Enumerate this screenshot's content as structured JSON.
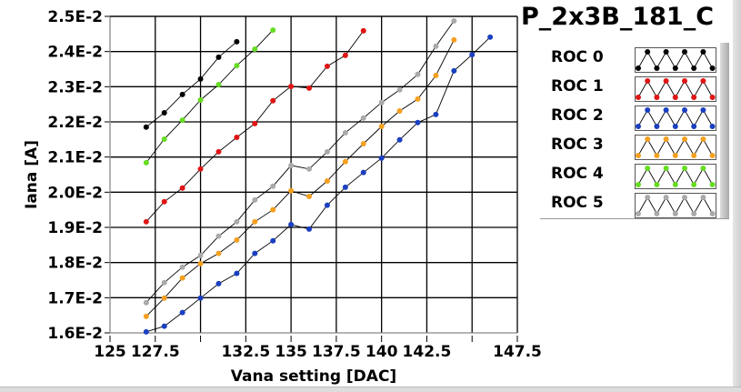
{
  "chart_data": {
    "type": "line",
    "title": "P_2x3B_181_C",
    "xlabel": "Vana setting [DAC]",
    "ylabel": "Iana [A]",
    "xlim": [
      125,
      147.5
    ],
    "ylim": [
      0.016,
      0.025
    ],
    "xticks": [
      125,
      127.5,
      130,
      132.5,
      135,
      137.5,
      140,
      142.5,
      145,
      147.5
    ],
    "xtick_labels": [
      "125",
      "127.5",
      "",
      "132.5",
      "135",
      "137.5",
      "140",
      "142.5",
      "",
      "147.5"
    ],
    "yticks": [
      0.016,
      0.017,
      0.018,
      0.019,
      0.02,
      0.021,
      0.022,
      0.023,
      0.024,
      0.025
    ],
    "ytick_labels": [
      "1.6E-2",
      "1.7E-2",
      "1.8E-2",
      "1.9E-2",
      "2.0E-2",
      "2.1E-2",
      "2.2E-2",
      "2.3E-2",
      "2.4E-2",
      "2.5E-2"
    ],
    "grid": true,
    "legend_position": "right",
    "series": [
      {
        "name": "ROC 0",
        "color": "#000000",
        "x": [
          127,
          128,
          129,
          130,
          131,
          132
        ],
        "y": [
          0.02185,
          0.02226,
          0.02278,
          0.02322,
          0.02384,
          0.02428
        ]
      },
      {
        "name": "ROC 1",
        "color": "#e01515",
        "x": [
          127,
          128,
          129,
          130,
          131,
          132,
          133,
          134,
          135,
          136,
          137,
          138,
          139
        ],
        "y": [
          0.01916,
          0.01973,
          0.02012,
          0.02066,
          0.02115,
          0.02156,
          0.02195,
          0.0226,
          0.02301,
          0.02296,
          0.02358,
          0.02389,
          0.02459
        ]
      },
      {
        "name": "ROC 2",
        "color": "#1a3fc0",
        "x": [
          127,
          128,
          129,
          130,
          131,
          132,
          133,
          134,
          135,
          136,
          137,
          138,
          139,
          140,
          141,
          142,
          143,
          144,
          145,
          146
        ],
        "y": [
          0.01603,
          0.01619,
          0.01658,
          0.01699,
          0.0174,
          0.01769,
          0.01826,
          0.01862,
          0.01908,
          0.01895,
          0.01963,
          0.02014,
          0.02056,
          0.02097,
          0.02149,
          0.02198,
          0.02221,
          0.02345,
          0.02391,
          0.02441
        ]
      },
      {
        "name": "ROC 3",
        "color": "#f5a020",
        "x": [
          127,
          128,
          129,
          130,
          131,
          132,
          133,
          134,
          135,
          136,
          137,
          138,
          139,
          140,
          141,
          142,
          143,
          144
        ],
        "y": [
          0.01647,
          0.01699,
          0.01756,
          0.01797,
          0.01826,
          0.01864,
          0.01916,
          0.0195,
          0.02004,
          0.01988,
          0.02032,
          0.02087,
          0.02138,
          0.02187,
          0.02231,
          0.02265,
          0.02332,
          0.02433
        ]
      },
      {
        "name": "ROC 4",
        "color": "#66dd22",
        "x": [
          127,
          128,
          129,
          130,
          131,
          132,
          133,
          134
        ],
        "y": [
          0.02084,
          0.02151,
          0.02205,
          0.02262,
          0.02306,
          0.0236,
          0.02407,
          0.02461
        ]
      },
      {
        "name": "ROC 5",
        "color": "#aaaaaa",
        "x": [
          127,
          128,
          129,
          130,
          131,
          132,
          133,
          134,
          135,
          136,
          137,
          138,
          139,
          140,
          141,
          142,
          143,
          144
        ],
        "y": [
          0.01686,
          0.01743,
          0.01787,
          0.0182,
          0.01875,
          0.01916,
          0.01978,
          0.02017,
          0.02076,
          0.02066,
          0.02115,
          0.02169,
          0.02211,
          0.02255,
          0.02291,
          0.02335,
          0.02415,
          0.02487
        ]
      }
    ]
  }
}
